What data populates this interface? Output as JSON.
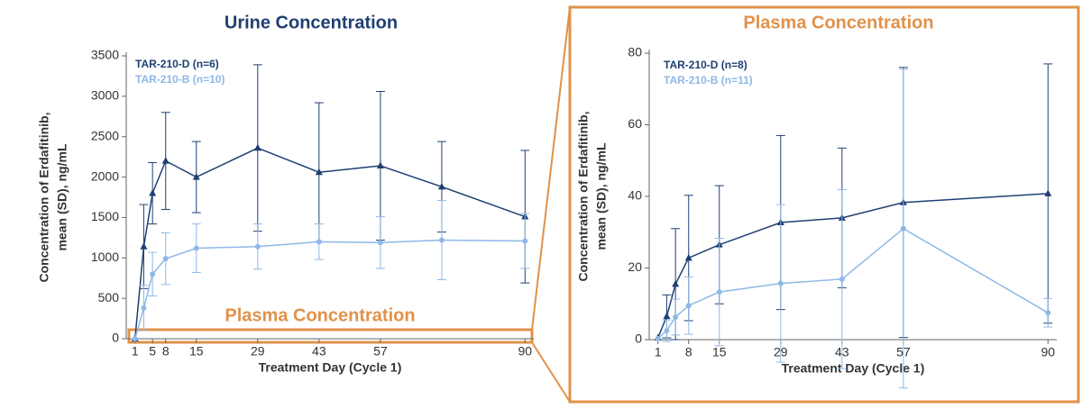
{
  "chart_data": [
    {
      "type": "line",
      "title": "Urine Concentration",
      "title_color": "#1f3f73",
      "ylabel": [
        "Concentration of Erdafitinib,",
        "mean (SD), ng/mL"
      ],
      "xlabel": "Treatment Day (Cycle 1)",
      "annotation": "Plasma Concentration",
      "annotation_color": "#e0924a",
      "xlim": [
        -1,
        92
      ],
      "xticks": [
        1,
        5,
        8,
        15,
        29,
        43,
        57,
        90
      ],
      "ylim": [
        0,
        3500
      ],
      "yticks": [
        0,
        500,
        1000,
        1500,
        2000,
        2500,
        3000,
        3500
      ],
      "x": [
        1,
        3,
        5,
        8,
        15,
        29,
        43,
        57,
        71,
        90
      ],
      "series": [
        {
          "name": "TAR-210-D (n=6)",
          "color": "#1f3f73",
          "marker": "triangle",
          "values": [
            0,
            1140,
            1800,
            2200,
            2000,
            2360,
            2060,
            2140,
            1880,
            1510
          ],
          "sd": [
            null,
            520,
            380,
            600,
            440,
            1030,
            860,
            920,
            560,
            820
          ]
        },
        {
          "name": "TAR-210-B (n=10)",
          "color": "#8fb8e6",
          "marker": "circle",
          "values": [
            0,
            380,
            800,
            990,
            1120,
            1140,
            1200,
            1190,
            1220,
            1210
          ],
          "sd": [
            null,
            280,
            270,
            320,
            300,
            280,
            220,
            320,
            490,
            340
          ]
        }
      ]
    },
    {
      "type": "line",
      "title": "Plasma Concentration",
      "title_color": "#e0924a",
      "ylabel": [
        "Concentration of Erdafitinib,",
        "mean (SD), ng/mL"
      ],
      "xlabel": "Treatment Day (Cycle 1)",
      "xlim": [
        -1,
        92
      ],
      "xticks": [
        1,
        8,
        15,
        29,
        43,
        57,
        90
      ],
      "ylim": [
        0,
        80
      ],
      "yticks": [
        0,
        20,
        40,
        60,
        80
      ],
      "x": [
        1,
        3,
        5,
        8,
        15,
        29,
        43,
        57,
        90
      ],
      "series": [
        {
          "name": "TAR-210-D (n=8)",
          "color": "#1f3f73",
          "marker": "triangle",
          "values": [
            0.5,
            6.5,
            15.5,
            22.8,
            26.5,
            32.7,
            34,
            38.3,
            40.8
          ],
          "sd": [
            null,
            6,
            15.5,
            17.5,
            16.5,
            24.3,
            19.5,
            37.7,
            36.2
          ]
        },
        {
          "name": "TAR-210-B (n=11)",
          "color": "#8fb8e6",
          "marker": "circle",
          "values": [
            0.3,
            2.5,
            6.3,
            9.5,
            13.3,
            15.7,
            16.9,
            31,
            7.5
          ],
          "sd": [
            null,
            3,
            5,
            8,
            15,
            22,
            25,
            44.5,
            4
          ]
        }
      ]
    }
  ]
}
